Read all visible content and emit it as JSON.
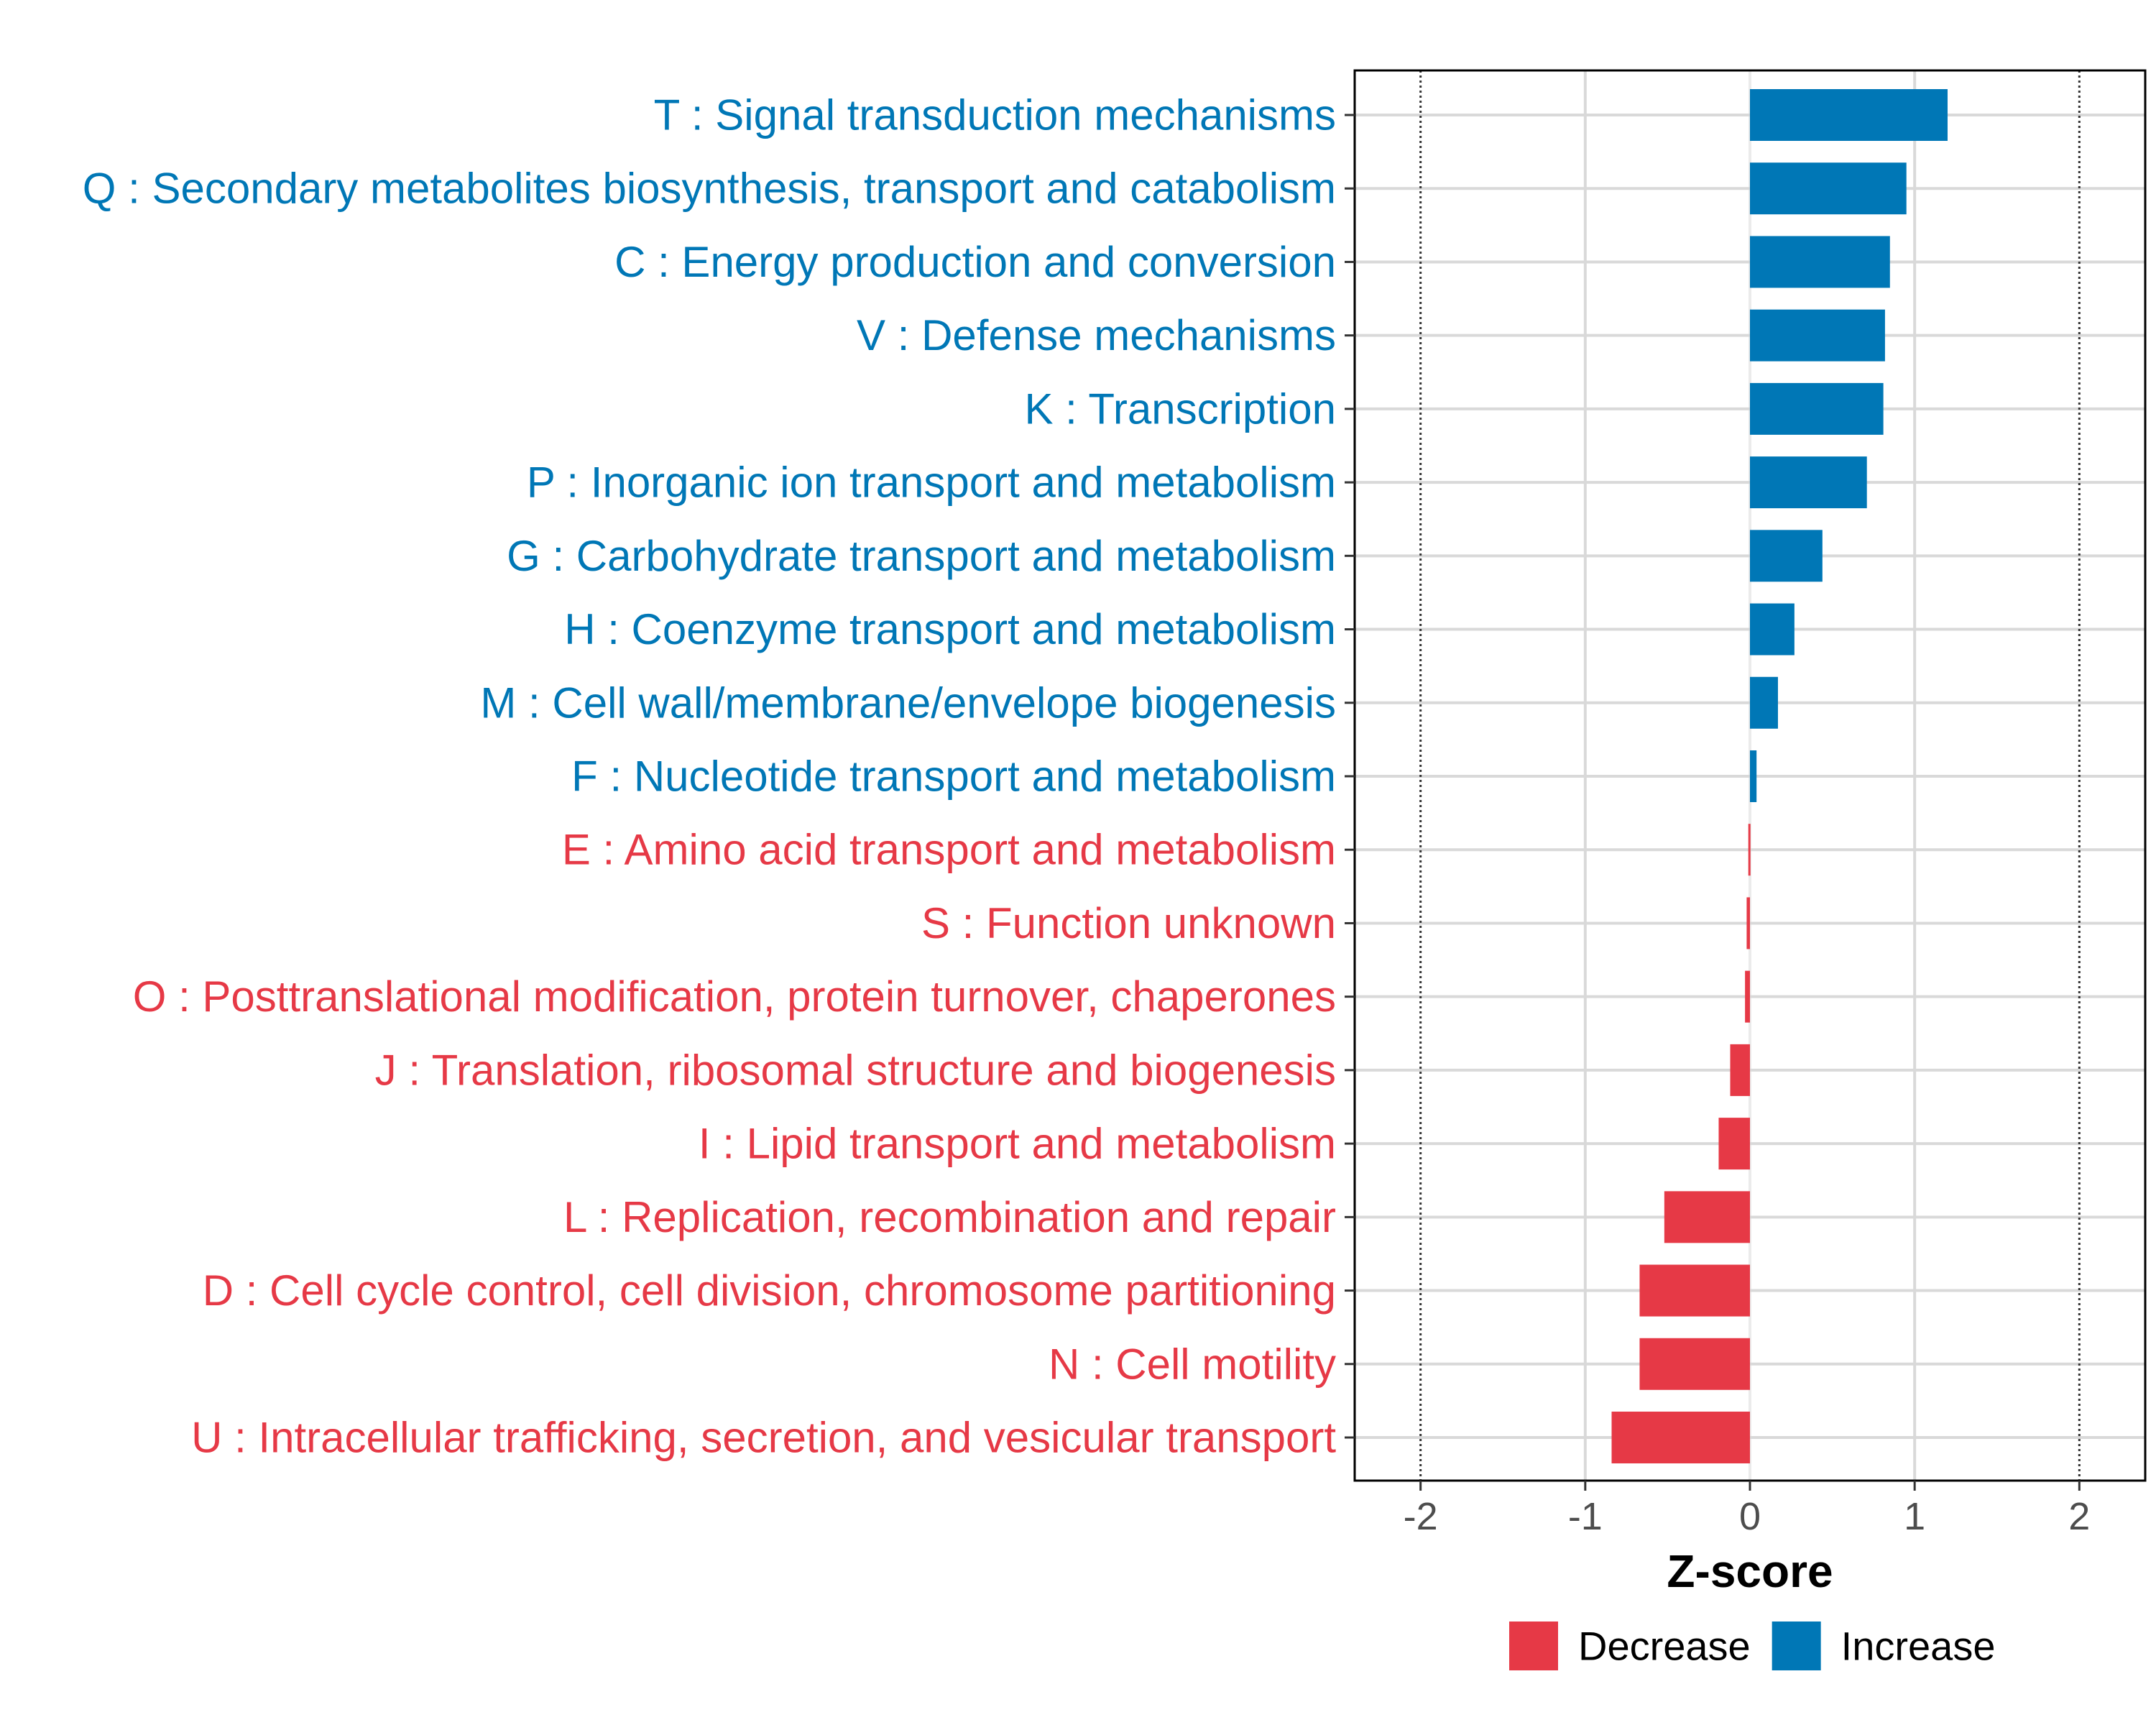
{
  "chart_data": {
    "type": "bar",
    "orientation": "horizontal",
    "title": "",
    "xlabel": "Z-score",
    "ylabel": "",
    "xlim": [
      -2.4,
      2.4
    ],
    "xticks": [
      -2,
      -1,
      0,
      1,
      2
    ],
    "xtick_labels": [
      "-2",
      "-1",
      "0",
      "1",
      "2"
    ],
    "reference_lines": [
      -2,
      2
    ],
    "grid": true,
    "categories": [
      "T : Signal transduction mechanisms",
      "Q : Secondary metabolites biosynthesis, transport and catabolism",
      "C : Energy production and conversion",
      "V : Defense mechanisms",
      "K : Transcription",
      "P : Inorganic ion transport and metabolism",
      "G : Carbohydrate transport and metabolism",
      "H : Coenzyme transport and metabolism",
      "M : Cell wall/membrane/envelope biogenesis",
      "F : Nucleotide transport and metabolism",
      "E : Amino acid transport and metabolism",
      "S : Function unknown",
      "O : Posttranslational modification, protein turnover, chaperones",
      "J : Translation, ribosomal structure and biogenesis",
      "I : Lipid transport and metabolism",
      "L : Replication, recombination and repair",
      "D : Cell cycle control, cell division, chromosome partitioning",
      "N : Cell motility",
      "U : Intracellular trafficking, secretion, and vesicular transport"
    ],
    "values": [
      1.2,
      0.95,
      0.85,
      0.82,
      0.81,
      0.71,
      0.44,
      0.27,
      0.17,
      0.04,
      -0.01,
      -0.02,
      -0.03,
      -0.12,
      -0.19,
      -0.52,
      -0.67,
      -0.67,
      -0.84
    ],
    "legend": {
      "position": "bottom",
      "entries": [
        {
          "name": "Decrease",
          "color": "#E63946"
        },
        {
          "name": "Increase",
          "color": "#0077B6"
        }
      ]
    },
    "colors": {
      "increase": "#0077B6",
      "decrease": "#E63946",
      "grid": "#d9d9d9",
      "zero_line": "#ebebeb"
    }
  }
}
